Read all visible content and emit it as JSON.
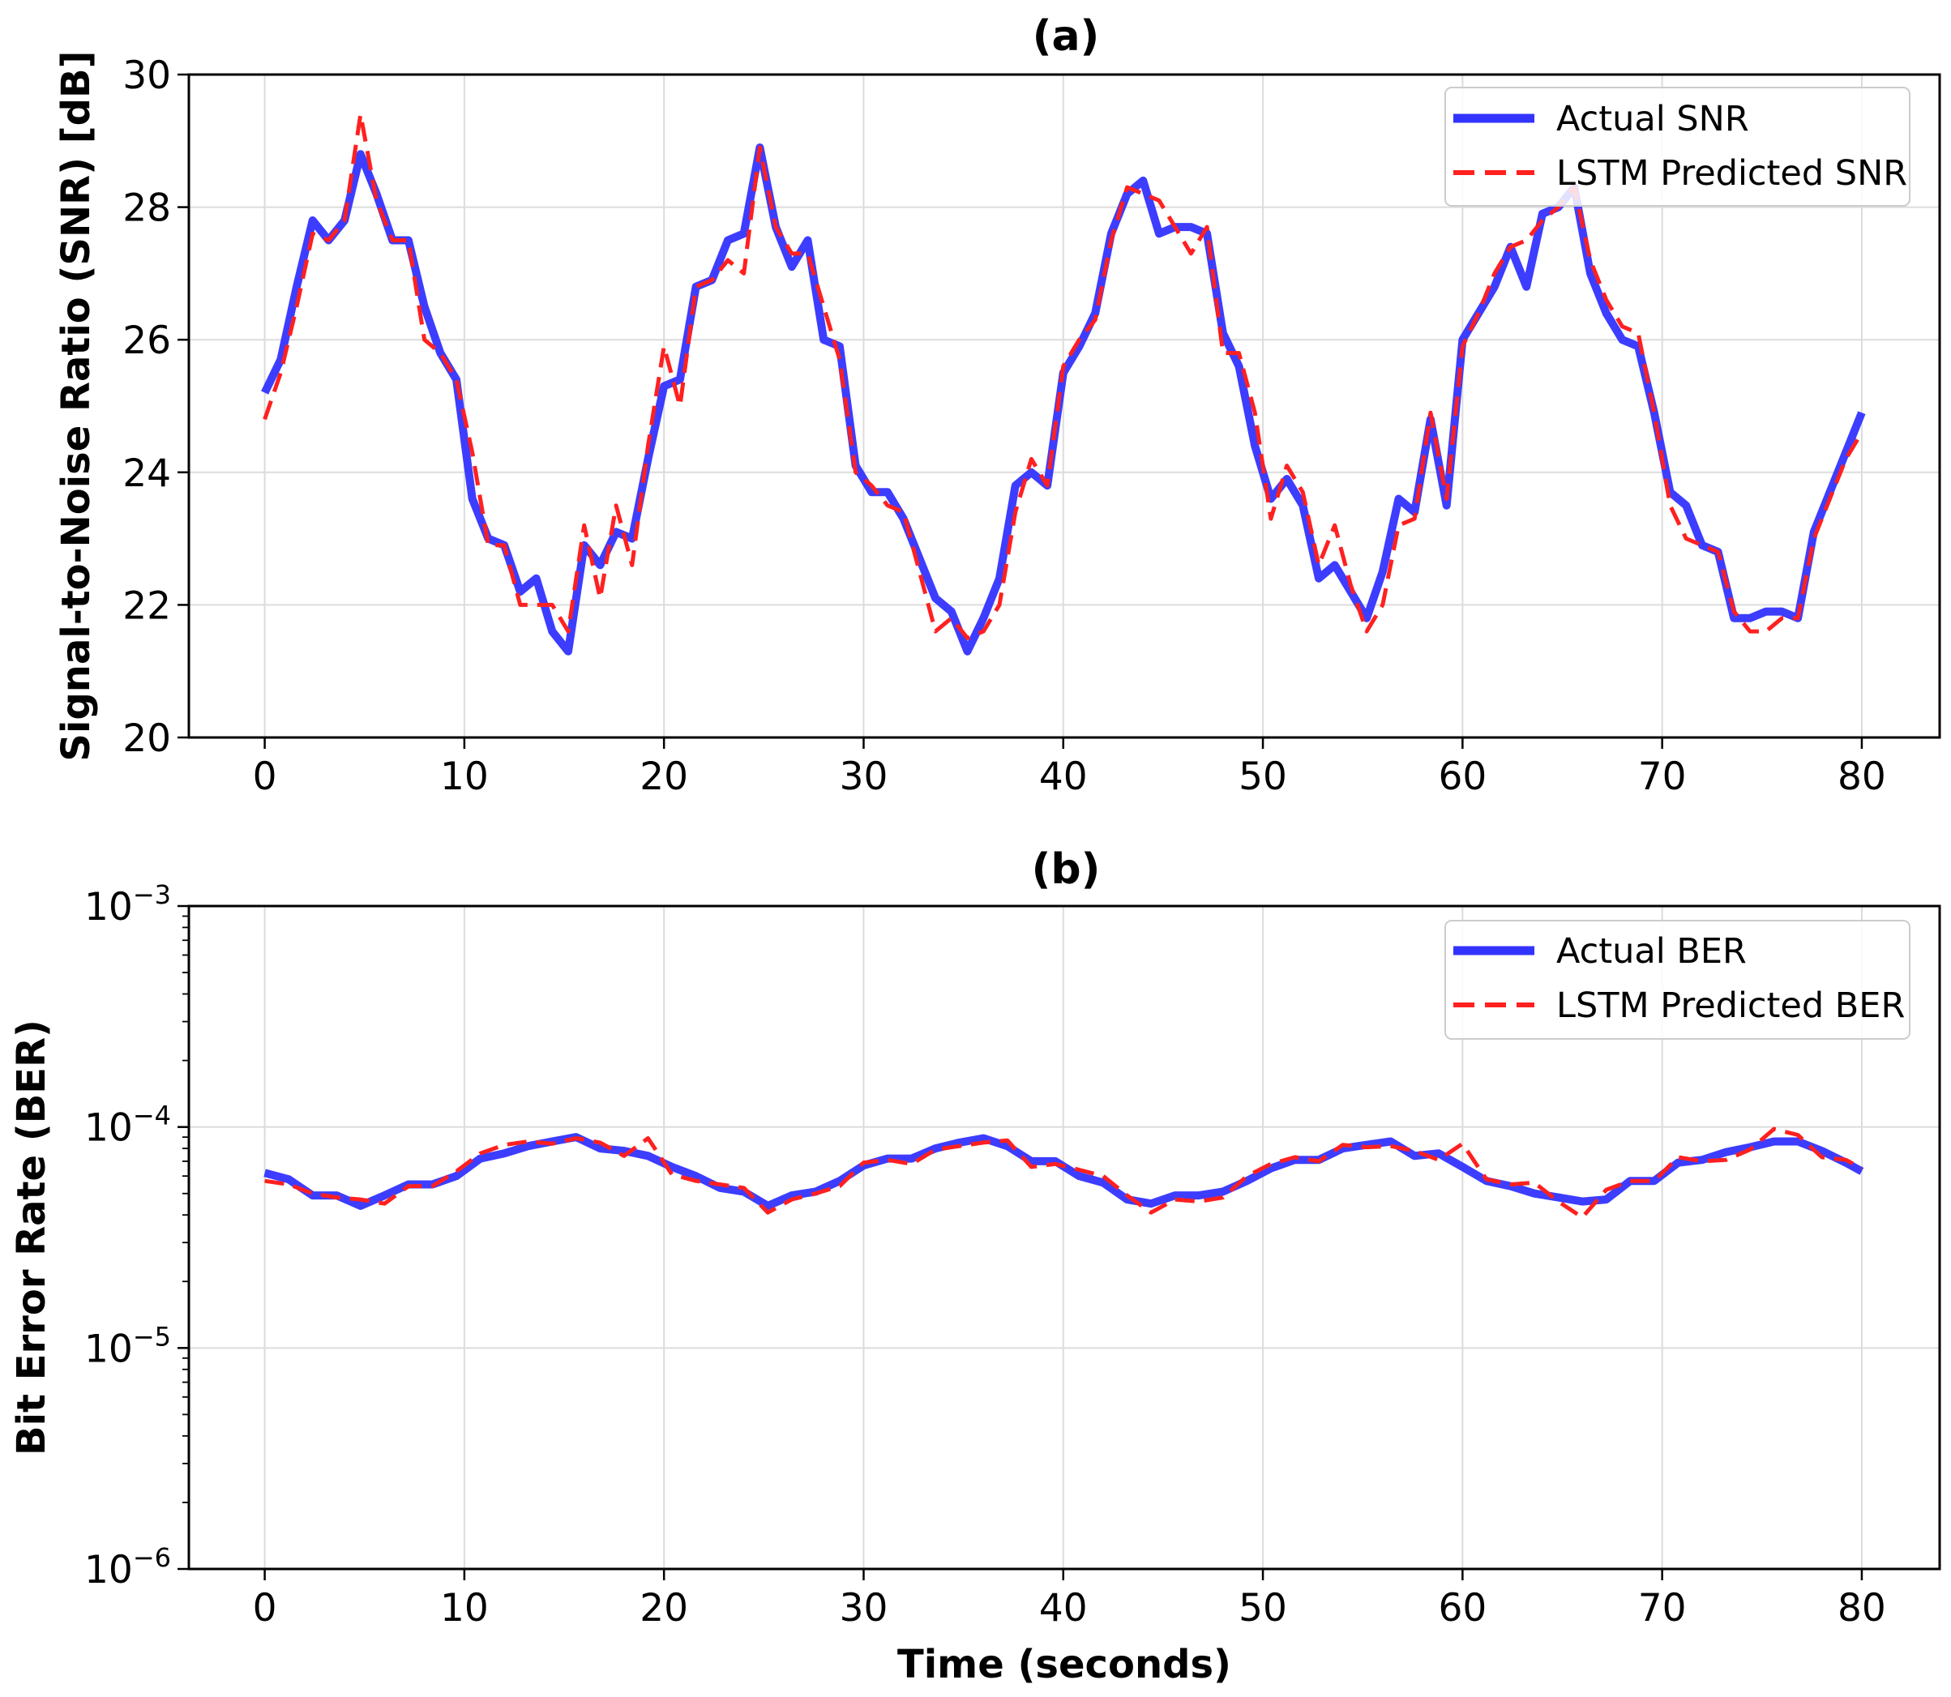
{
  "chart_data": [
    {
      "id": "a",
      "type": "line",
      "title": "(a)",
      "xlabel": "",
      "ylabel": "Signal-to-Noise Ratio (SNR) [dB]",
      "xlim": [
        -3.8,
        83.9
      ],
      "ylim": [
        20,
        30
      ],
      "yscale": "linear",
      "xticks": [
        0,
        10,
        20,
        30,
        40,
        50,
        60,
        70,
        80
      ],
      "yticks": [
        20,
        22,
        24,
        26,
        28,
        30
      ],
      "ytick_labels": [
        "20",
        "22",
        "24",
        "26",
        "28",
        "30"
      ],
      "grid": true,
      "legend_position": "upper-right",
      "series": [
        {
          "name": "Actual SNR",
          "color": "#3333ff",
          "style": "solid",
          "x": [
            0,
            0.8,
            1.6,
            2.4,
            3.2,
            4.0,
            4.8,
            5.6,
            6.4,
            7.2,
            8.0,
            8.8,
            9.6,
            10.4,
            11.2,
            12.0,
            12.8,
            13.6,
            14.4,
            15.2,
            16.0,
            16.8,
            17.6,
            18.4,
            19.2,
            20.0,
            20.8,
            21.6,
            22.4,
            23.2,
            24.0,
            24.8,
            25.6,
            26.4,
            27.2,
            28.0,
            28.8,
            29.6,
            30.4,
            31.2,
            32.0,
            32.8,
            33.6,
            34.4,
            35.2,
            36.0,
            36.8,
            37.6,
            38.4,
            39.2,
            40.0,
            40.8,
            41.6,
            42.4,
            43.2,
            44.0,
            44.8,
            45.6,
            46.4,
            47.2,
            48.0,
            48.8,
            49.6,
            50.4,
            51.2,
            52.0,
            52.8,
            53.6,
            54.4,
            55.2,
            56.0,
            56.8,
            57.6,
            58.4,
            59.2,
            60.0,
            60.8,
            61.6,
            62.4,
            63.2,
            64.0,
            64.8,
            65.6,
            66.4,
            67.2,
            68.0,
            68.8,
            69.6,
            70.4,
            71.2,
            72.0,
            72.8,
            73.6,
            74.4,
            75.2,
            76.0,
            76.8,
            77.6,
            78.4,
            79.2,
            80.0
          ],
          "y": [
            25.2,
            25.7,
            26.8,
            27.8,
            27.5,
            27.8,
            28.8,
            28.2,
            27.5,
            27.5,
            26.5,
            25.8,
            25.4,
            23.6,
            23.0,
            22.9,
            22.2,
            22.4,
            21.6,
            21.3,
            22.9,
            22.6,
            23.1,
            23.0,
            24.2,
            25.3,
            25.4,
            26.8,
            26.9,
            27.5,
            27.6,
            28.9,
            27.7,
            27.1,
            27.5,
            26.0,
            25.9,
            24.1,
            23.7,
            23.7,
            23.3,
            22.7,
            22.1,
            21.9,
            21.3,
            21.8,
            22.4,
            23.8,
            24.0,
            23.8,
            25.5,
            25.9,
            26.4,
            27.6,
            28.2,
            28.4,
            27.6,
            27.7,
            27.7,
            27.6,
            26.1,
            25.6,
            24.4,
            23.6,
            23.9,
            23.5,
            22.4,
            22.6,
            22.2,
            21.8,
            22.5,
            23.6,
            23.4,
            24.8,
            23.5,
            26.0,
            26.4,
            26.8,
            27.4,
            26.8,
            27.9,
            28.0,
            28.3,
            27.0,
            26.4,
            26.0,
            25.9,
            24.9,
            23.7,
            23.5,
            22.9,
            22.8,
            21.8,
            21.8,
            21.9,
            21.9,
            21.8,
            23.1,
            23.7,
            24.3,
            24.9
          ]
        },
        {
          "name": "LSTM Predicted SNR",
          "color": "#ff2020",
          "style": "dashed",
          "x": [
            0,
            0.8,
            1.6,
            2.4,
            3.2,
            4.0,
            4.8,
            5.6,
            6.4,
            7.2,
            8.0,
            8.8,
            9.6,
            10.4,
            11.2,
            12.0,
            12.8,
            13.6,
            14.4,
            15.2,
            16.0,
            16.8,
            17.6,
            18.4,
            19.2,
            20.0,
            20.8,
            21.6,
            22.4,
            23.2,
            24.0,
            24.8,
            25.6,
            26.4,
            27.2,
            28.0,
            28.8,
            29.6,
            30.4,
            31.2,
            32.0,
            32.8,
            33.6,
            34.4,
            35.2,
            36.0,
            36.8,
            37.6,
            38.4,
            39.2,
            40.0,
            40.8,
            41.6,
            42.4,
            43.2,
            44.0,
            44.8,
            45.6,
            46.4,
            47.2,
            48.0,
            48.8,
            49.6,
            50.4,
            51.2,
            52.0,
            52.8,
            53.6,
            54.4,
            55.2,
            56.0,
            56.8,
            57.6,
            58.4,
            59.2,
            60.0,
            60.8,
            61.6,
            62.4,
            63.2,
            64.0,
            64.8,
            65.6,
            66.4,
            67.2,
            68.0,
            68.8,
            69.6,
            70.4,
            71.2,
            72.0,
            72.8,
            73.6,
            74.4,
            75.2,
            76.0,
            76.8,
            77.6,
            78.4,
            79.2,
            80.0
          ],
          "y": [
            24.8,
            25.5,
            26.5,
            27.6,
            27.5,
            27.8,
            29.4,
            28.1,
            27.5,
            27.5,
            26.0,
            25.8,
            25.4,
            24.3,
            22.9,
            22.9,
            22.0,
            22.0,
            22.0,
            21.6,
            23.2,
            22.1,
            23.5,
            22.6,
            24.4,
            25.9,
            25.0,
            26.8,
            26.9,
            27.2,
            27.0,
            28.9,
            27.7,
            27.3,
            27.3,
            26.5,
            25.7,
            24.0,
            23.8,
            23.5,
            23.4,
            22.5,
            21.6,
            21.8,
            21.5,
            21.6,
            22.0,
            23.4,
            24.2,
            23.8,
            25.6,
            26.0,
            26.3,
            27.5,
            28.3,
            28.2,
            28.1,
            27.7,
            27.3,
            27.7,
            25.8,
            25.8,
            24.9,
            23.3,
            24.1,
            23.7,
            22.6,
            23.2,
            22.3,
            21.6,
            22.0,
            23.2,
            23.3,
            24.9,
            23.6,
            25.9,
            26.4,
            27.0,
            27.4,
            27.5,
            27.8,
            28.0,
            28.3,
            27.2,
            26.6,
            26.2,
            26.1,
            24.9,
            23.5,
            23.0,
            22.9,
            22.8,
            21.9,
            21.6,
            21.6,
            21.8,
            21.8,
            23.0,
            23.6,
            24.2,
            24.6
          ]
        }
      ]
    },
    {
      "id": "b",
      "type": "line",
      "title": "(b)",
      "xlabel": "Time (seconds)",
      "ylabel": "Bit Error Rate (BER)",
      "xlim": [
        -3.8,
        83.9
      ],
      "ylim": [
        1e-06,
        0.001
      ],
      "yscale": "log",
      "xticks": [
        0,
        10,
        20,
        30,
        40,
        50,
        60,
        70,
        80
      ],
      "yticks": [
        1e-06,
        1e-05,
        0.0001,
        0.001
      ],
      "ytick_labels": [
        {
          "base": "10",
          "exp": "−6"
        },
        {
          "base": "10",
          "exp": "−5"
        },
        {
          "base": "10",
          "exp": "−4"
        },
        {
          "base": "10",
          "exp": "−3"
        }
      ],
      "grid": true,
      "legend_position": "upper-right",
      "series": [
        {
          "name": "Actual BER",
          "color": "#3333ff",
          "style": "solid",
          "x": [
            0,
            1.2,
            2.4,
            3.6,
            4.8,
            6.0,
            7.2,
            8.4,
            9.6,
            10.8,
            12.0,
            13.2,
            14.4,
            15.6,
            16.8,
            18.0,
            19.2,
            20.4,
            21.6,
            22.8,
            24.0,
            25.2,
            26.4,
            27.6,
            28.8,
            30.0,
            31.2,
            32.4,
            33.6,
            34.8,
            36.0,
            37.2,
            38.4,
            39.6,
            40.8,
            42.0,
            43.2,
            44.4,
            45.6,
            46.8,
            48.0,
            49.2,
            50.4,
            51.6,
            52.8,
            54.0,
            55.2,
            56.4,
            57.6,
            58.8,
            60.0,
            61.2,
            62.4,
            63.6,
            64.8,
            66.0,
            67.2,
            68.4,
            69.6,
            70.8,
            72.0,
            73.2,
            74.4,
            75.6,
            76.8,
            78.0,
            79.2,
            80.0
          ],
          "y": [
            6.2e-05,
            5.8e-05,
            4.9e-05,
            4.9e-05,
            4.4e-05,
            4.9e-05,
            5.5e-05,
            5.5e-05,
            6e-05,
            7.2e-05,
            7.6e-05,
            8.2e-05,
            8.6e-05,
            9e-05,
            8e-05,
            7.8e-05,
            7.4e-05,
            6.6e-05,
            6e-05,
            5.3e-05,
            5.1e-05,
            4.4e-05,
            4.9e-05,
            5.1e-05,
            5.7e-05,
            6.7e-05,
            7.2e-05,
            7.2e-05,
            8e-05,
            8.5e-05,
            8.9e-05,
            8.2e-05,
            7e-05,
            7e-05,
            6e-05,
            5.6e-05,
            4.7e-05,
            4.5e-05,
            4.9e-05,
            4.9e-05,
            5.1e-05,
            5.7e-05,
            6.5e-05,
            7.1e-05,
            7.1e-05,
            8e-05,
            8.3e-05,
            8.6e-05,
            7.4e-05,
            7.6e-05,
            6.6e-05,
            5.7e-05,
            5.4e-05,
            5e-05,
            4.8e-05,
            4.6e-05,
            4.7e-05,
            5.7e-05,
            5.7e-05,
            6.9e-05,
            7.1e-05,
            7.7e-05,
            8.1e-05,
            8.6e-05,
            8.6e-05,
            7.8e-05,
            6.9e-05,
            6.3e-05
          ]
        },
        {
          "name": "LSTM Predicted BER",
          "color": "#ff2020",
          "style": "dashed",
          "x": [
            0,
            1.2,
            2.4,
            3.6,
            4.8,
            6.0,
            7.2,
            8.4,
            9.6,
            10.8,
            12.0,
            13.2,
            14.4,
            15.6,
            16.8,
            18.0,
            19.2,
            20.4,
            21.6,
            22.8,
            24.0,
            25.2,
            26.4,
            27.6,
            28.8,
            30.0,
            31.2,
            32.4,
            33.6,
            34.8,
            36.0,
            37.2,
            38.4,
            39.6,
            40.8,
            42.0,
            43.2,
            44.4,
            45.6,
            46.8,
            48.0,
            49.2,
            50.4,
            51.6,
            52.8,
            54.0,
            55.2,
            56.4,
            57.6,
            58.8,
            60.0,
            61.2,
            62.4,
            63.6,
            64.8,
            66.0,
            67.2,
            68.4,
            69.6,
            70.8,
            72.0,
            73.2,
            74.4,
            75.6,
            76.8,
            78.0,
            79.2,
            80.0
          ],
          "y": [
            5.7e-05,
            5.5e-05,
            5e-05,
            4.8e-05,
            4.7e-05,
            4.5e-05,
            5.4e-05,
            5.4e-05,
            6.3e-05,
            7.6e-05,
            8.3e-05,
            8.6e-05,
            8.4e-05,
            8.9e-05,
            8.5e-05,
            7.4e-05,
            8.9e-05,
            6.1e-05,
            5.7e-05,
            5.5e-05,
            5.3e-05,
            4.1e-05,
            4.7e-05,
            5e-05,
            5.4e-05,
            6.9e-05,
            7.1e-05,
            6.8e-05,
            7.9e-05,
            8.2e-05,
            8.5e-05,
            8.7e-05,
            6.6e-05,
            6.8e-05,
            6.4e-05,
            6e-05,
            4.9e-05,
            4.1e-05,
            4.7e-05,
            4.6e-05,
            4.8e-05,
            6e-05,
            6.8e-05,
            7.3e-05,
            7e-05,
            8.3e-05,
            8.1e-05,
            8.2e-05,
            7.8e-05,
            7.1e-05,
            8.4e-05,
            5.8e-05,
            5.5e-05,
            5.6e-05,
            4.6e-05,
            3.9e-05,
            5.2e-05,
            5.7e-05,
            5.7e-05,
            7.3e-05,
            7e-05,
            7.1e-05,
            7.9e-05,
            9.8e-05,
            9.2e-05,
            7.3e-05,
            7.1e-05,
            6.5e-05
          ]
        }
      ]
    }
  ]
}
